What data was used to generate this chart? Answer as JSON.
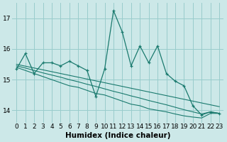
{
  "xlabel": "Humidex (Indice chaleur)",
  "background_color": "#cce8e8",
  "grid_color": "#99cccc",
  "line_color": "#1a7a6e",
  "x_ticks": [
    0,
    1,
    2,
    3,
    4,
    5,
    6,
    7,
    8,
    9,
    10,
    11,
    12,
    13,
    14,
    15,
    16,
    17,
    18,
    19,
    20,
    21,
    22,
    23
  ],
  "y_ticks": [
    14,
    15,
    16,
    17
  ],
  "xlim": [
    -0.5,
    23.5
  ],
  "ylim": [
    13.6,
    17.5
  ],
  "main_series": [
    15.35,
    15.85,
    15.2,
    15.55,
    15.55,
    15.45,
    15.6,
    15.45,
    15.3,
    14.45,
    15.35,
    17.25,
    16.55,
    15.45,
    16.1,
    15.55,
    16.1,
    15.2,
    14.95,
    14.8,
    14.15,
    13.85,
    13.95,
    13.9
  ],
  "reg_lines": [
    [
      15.4,
      15.3,
      15.2,
      15.1,
      15.0,
      14.9,
      14.8,
      14.75,
      14.65,
      14.55,
      14.5,
      14.4,
      14.3,
      14.2,
      14.15,
      14.05,
      14.0,
      13.95,
      13.88,
      13.82,
      13.78,
      13.75,
      13.9,
      13.9
    ],
    [
      15.45,
      15.38,
      15.3,
      15.22,
      15.15,
      15.08,
      15.0,
      14.93,
      14.85,
      14.78,
      14.7,
      14.62,
      14.55,
      14.47,
      14.4,
      14.32,
      14.25,
      14.18,
      14.1,
      14.02,
      13.95,
      13.88,
      13.95,
      13.9
    ],
    [
      15.5,
      15.44,
      15.38,
      15.32,
      15.26,
      15.2,
      15.14,
      15.08,
      15.02,
      14.96,
      14.9,
      14.84,
      14.78,
      14.72,
      14.66,
      14.6,
      14.54,
      14.48,
      14.42,
      14.36,
      14.3,
      14.24,
      14.18,
      14.12
    ]
  ],
  "tick_fontsize": 6.5,
  "label_fontsize": 7.5
}
